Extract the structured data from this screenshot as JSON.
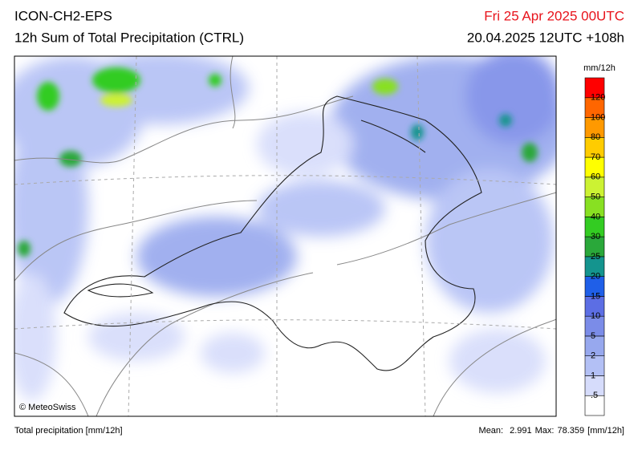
{
  "header": {
    "model": "ICON-CH2-EPS",
    "product": "12h Sum of Total Precipitation (CTRL)",
    "valid_time": "Fri 25 Apr 2025 00UTC",
    "run": "20.04.2025 12UTC +108h"
  },
  "legend": {
    "unit": "mm/12h",
    "boundaries": [
      ".5",
      "1",
      "2",
      "5",
      "10",
      "15",
      "20",
      "25",
      "30",
      "40",
      "50",
      "60",
      "70",
      "80",
      "100",
      "120"
    ],
    "colors": [
      "#ffffff",
      "#d6dcfb",
      "#b3c0f5",
      "#97a8ee",
      "#7b8ce8",
      "#5c6ee4",
      "#1f5fe8",
      "#14948e",
      "#2aa83a",
      "#33cc22",
      "#88e022",
      "#ccf233",
      "#ffff00",
      "#ffcc00",
      "#ff9900",
      "#ff6600",
      "#ff0000"
    ]
  },
  "credit": "© MeteoSwiss",
  "footer": {
    "left": "Total precipitation [mm/12h]",
    "mean_label": "Mean:",
    "mean": 2.991,
    "max_label": "Max:",
    "max": 78.359,
    "unit": "[mm/12h]"
  }
}
